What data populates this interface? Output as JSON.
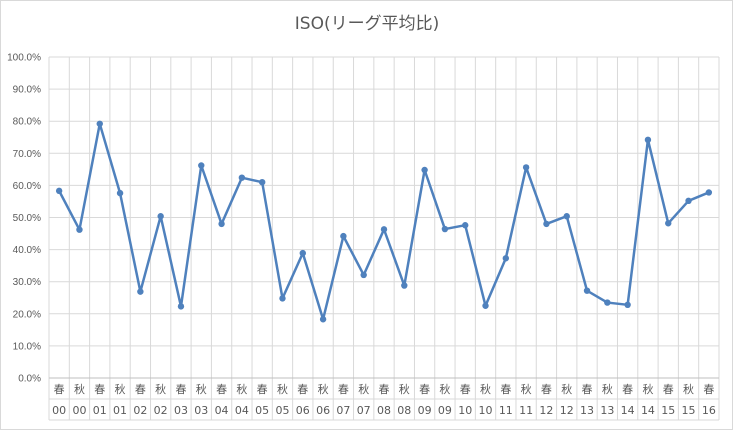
{
  "chart_data": {
    "type": "line",
    "title": "ISO(リーグ平均比)",
    "xlabel": "",
    "ylabel": "",
    "ylim": [
      0,
      100
    ],
    "y_ticks": [
      "0.0%",
      "10.0%",
      "20.0%",
      "30.0%",
      "40.0%",
      "50.0%",
      "60.0%",
      "70.0%",
      "80.0%",
      "90.0%",
      "100.0%"
    ],
    "grid": true,
    "legend": "none",
    "color": "#4f81bd",
    "categories": [
      {
        "season": "春",
        "year": "00"
      },
      {
        "season": "秋",
        "year": "00"
      },
      {
        "season": "春",
        "year": "01"
      },
      {
        "season": "秋",
        "year": "01"
      },
      {
        "season": "春",
        "year": "02"
      },
      {
        "season": "秋",
        "year": "02"
      },
      {
        "season": "春",
        "year": "03"
      },
      {
        "season": "秋",
        "year": "03"
      },
      {
        "season": "春",
        "year": "04"
      },
      {
        "season": "秋",
        "year": "04"
      },
      {
        "season": "春",
        "year": "05"
      },
      {
        "season": "秋",
        "year": "05"
      },
      {
        "season": "春",
        "year": "06"
      },
      {
        "season": "秋",
        "year": "06"
      },
      {
        "season": "春",
        "year": "07"
      },
      {
        "season": "秋",
        "year": "07"
      },
      {
        "season": "春",
        "year": "08"
      },
      {
        "season": "秋",
        "year": "08"
      },
      {
        "season": "春",
        "year": "09"
      },
      {
        "season": "秋",
        "year": "09"
      },
      {
        "season": "春",
        "year": "10"
      },
      {
        "season": "秋",
        "year": "10"
      },
      {
        "season": "春",
        "year": "11"
      },
      {
        "season": "秋",
        "year": "11"
      },
      {
        "season": "春",
        "year": "12"
      },
      {
        "season": "秋",
        "year": "12"
      },
      {
        "season": "春",
        "year": "13"
      },
      {
        "season": "秋",
        "year": "13"
      },
      {
        "season": "春",
        "year": "14"
      },
      {
        "season": "秋",
        "year": "14"
      },
      {
        "season": "春",
        "year": "15"
      },
      {
        "season": "秋",
        "year": "15"
      },
      {
        "season": "春",
        "year": "16"
      }
    ],
    "values": [
      58.3,
      46.2,
      79.2,
      57.6,
      26.9,
      50.4,
      22.3,
      66.2,
      48.0,
      62.4,
      61.0,
      24.8,
      38.9,
      18.3,
      44.2,
      32.1,
      46.3,
      28.8,
      64.8,
      46.4,
      47.6,
      22.5,
      37.3,
      65.6,
      48.0,
      50.4,
      27.2,
      23.5,
      22.8,
      74.2,
      48.2,
      55.2,
      57.8
    ]
  }
}
